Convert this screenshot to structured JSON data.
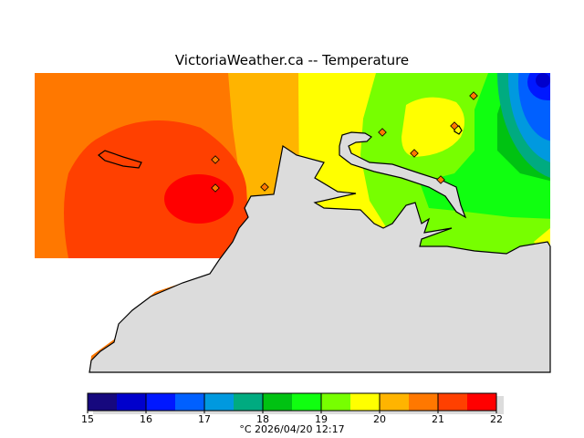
{
  "title": "VictoriaWeather.ca  --  Temperature",
  "legend": {
    "ticks": [
      "15",
      "16",
      "17",
      "18",
      "19",
      "20",
      "21",
      "22"
    ],
    "colors": [
      "#16087e",
      "#0000cc",
      "#0018ff",
      "#0060ff",
      "#0099df",
      "#00ab80",
      "#00c212",
      "#10ff10",
      "#77ff00",
      "#ffff00",
      "#ffb400",
      "#ff7800",
      "#ff4000",
      "#ff0000"
    ],
    "stamp": "°C  2026/04/20 12:17"
  },
  "map": {
    "land_color": "#dcdcdc"
  }
}
